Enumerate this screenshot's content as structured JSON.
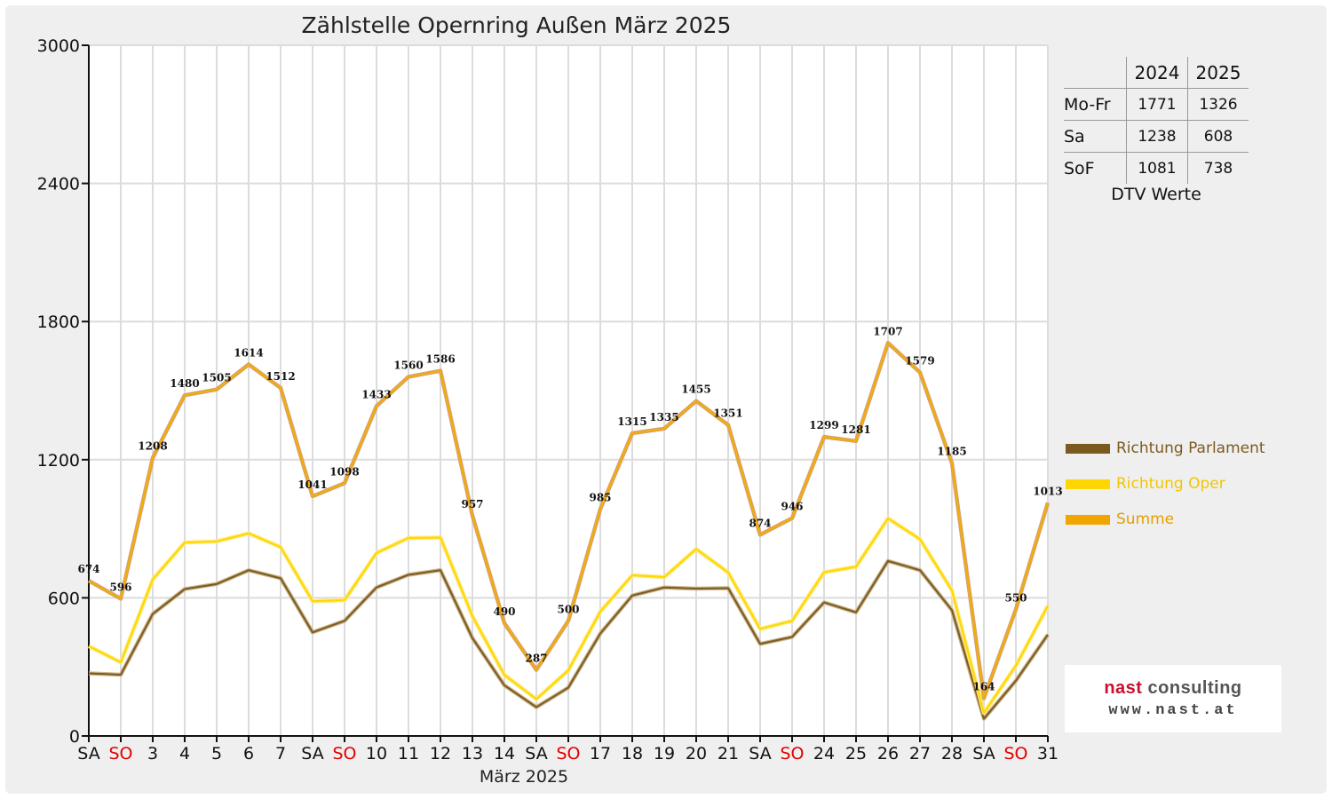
{
  "title": "Zählstelle Opernring Außen März 2025",
  "chart_data": {
    "type": "line",
    "title": "Zählstelle Opernring Außen März 2025",
    "xlabel": "März 2025",
    "ylabel": "",
    "ylim": [
      0,
      3000
    ],
    "yticks": [
      0,
      600,
      1200,
      1800,
      2400,
      3000
    ],
    "grid": true,
    "legend_position": "right",
    "categories": [
      "SA",
      "SO",
      "3",
      "4",
      "5",
      "6",
      "7",
      "SA",
      "SO",
      "10",
      "11",
      "12",
      "13",
      "14",
      "SA",
      "SO",
      "17",
      "18",
      "19",
      "20",
      "21",
      "SA",
      "SO",
      "24",
      "25",
      "26",
      "27",
      "28",
      "SA",
      "SO",
      "31"
    ],
    "weekend_flags": [
      false,
      true,
      false,
      false,
      false,
      false,
      false,
      false,
      true,
      false,
      false,
      false,
      false,
      false,
      false,
      true,
      false,
      false,
      false,
      false,
      false,
      false,
      true,
      false,
      false,
      false,
      false,
      false,
      false,
      true,
      false
    ],
    "series": [
      {
        "name": "Richtung Parlament",
        "color": "#7b5a1f",
        "values": [
          272,
          266,
          530,
          638,
          660,
          720,
          685,
          450,
          500,
          645,
          700,
          720,
          425,
          220,
          125,
          210,
          445,
          610,
          645,
          640,
          642,
          400,
          430,
          580,
          537,
          760,
          720,
          546,
          75,
          240,
          440
        ]
      },
      {
        "name": "Richtung Oper",
        "color": "#ffd700",
        "values": [
          390,
          320,
          680,
          840,
          845,
          880,
          820,
          585,
          590,
          795,
          860,
          862,
          520,
          265,
          160,
          285,
          540,
          698,
          690,
          812,
          710,
          465,
          500,
          711,
          735,
          945,
          855,
          632,
          100,
          305,
          565
        ]
      },
      {
        "name": "Summe",
        "color": "#f0a500",
        "values": [
          674,
          596,
          1208,
          1480,
          1505,
          1614,
          1512,
          1041,
          1098,
          1433,
          1560,
          1586,
          957,
          490,
          287,
          500,
          985,
          1315,
          1335,
          1455,
          1351,
          874,
          946,
          1299,
          1281,
          1707,
          1579,
          1185,
          164,
          550,
          1013
        ],
        "labels": [
          "674",
          "596",
          "1208",
          "1480",
          "1505",
          "1614",
          "1512",
          "1041",
          "1098",
          "1433",
          "1560",
          "1586",
          "957",
          "490",
          "287",
          "500",
          "985",
          "1315",
          "1335",
          "1455",
          "1351",
          "874",
          "946",
          "1299",
          "1281",
          "1707",
          "1579",
          "1185",
          "164",
          "550",
          "1013"
        ]
      }
    ]
  },
  "dtv": {
    "headers": [
      "",
      "2024",
      "2025"
    ],
    "rows": [
      {
        "label": "Mo-Fr",
        "v2024": "1771",
        "v2025": "1326"
      },
      {
        "label": "Sa",
        "v2024": "1238",
        "v2025": "608"
      },
      {
        "label": "SoF",
        "v2024": "1081",
        "v2025": "738"
      }
    ],
    "caption": "DTV Werte"
  },
  "legend": [
    {
      "label": "Richtung Parlament",
      "color": "#7b5a1f"
    },
    {
      "label": "Richtung Oper",
      "color": "#ffd700"
    },
    {
      "label": "Summe",
      "color": "#f0a500"
    }
  ],
  "logo": {
    "name_part1": "nast",
    "name_part2": "consulting",
    "url": "www.nast.at"
  }
}
